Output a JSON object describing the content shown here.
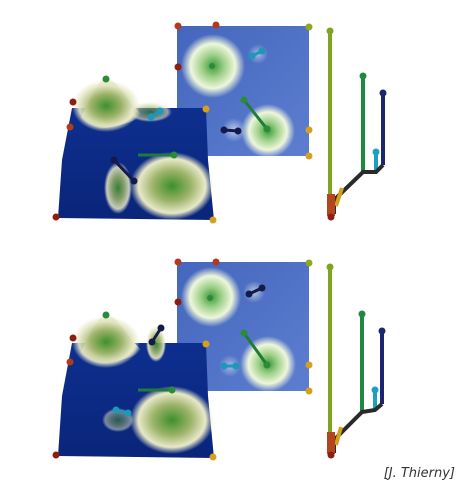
{
  "figure": {
    "credit": "[J. Thierny]",
    "colors": {
      "surface_low": "#0b2a86",
      "surface_high": "#f2f0d6",
      "peak_green": "#2f8a2a",
      "map_blue": "#3d5fb4",
      "node_dark_red": "#8c1f12",
      "node_orange": "#d6a01c",
      "node_dark_blue": "#141a4a",
      "node_cyan": "#1d98b8",
      "node_green": "#2b8b3a",
      "tree_yellowgreen": "#7fa41f",
      "tree_green": "#1f8a3f",
      "tree_navy": "#1a2770",
      "tree_cyan": "#1ba0c4",
      "tree_base": "#b4451e"
    }
  }
}
